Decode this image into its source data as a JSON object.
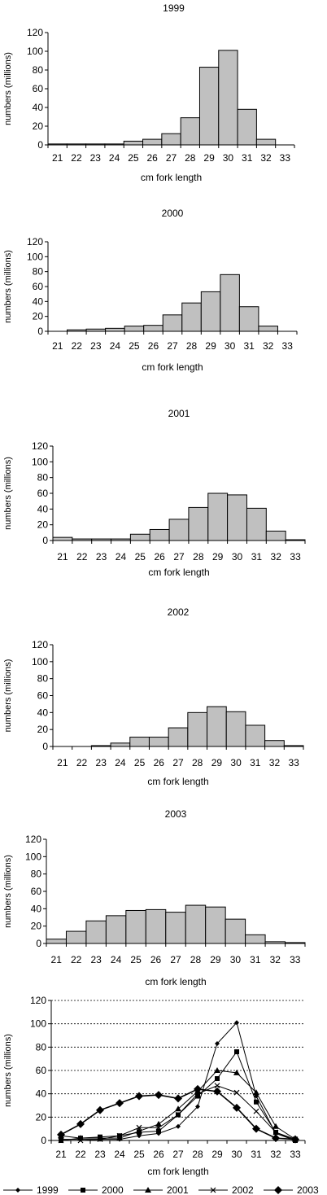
{
  "chart_data": [
    {
      "type": "bar",
      "title": "1999",
      "xlabel": "cm fork length",
      "ylabel": "numbers (millions)",
      "categories": [
        "21",
        "22",
        "23",
        "24",
        "25",
        "26",
        "27",
        "28",
        "29",
        "30",
        "31",
        "32",
        "33"
      ],
      "values": [
        1,
        1,
        1,
        1,
        4,
        6,
        12,
        29,
        83,
        101,
        38,
        6,
        0
      ],
      "ylim": [
        0,
        120
      ],
      "yticks": [
        0,
        20,
        40,
        60,
        80,
        100,
        120
      ],
      "grid": false
    },
    {
      "type": "bar",
      "title": "2000",
      "xlabel": "cm fork length",
      "ylabel": "numbers (millions)",
      "categories": [
        "21",
        "22",
        "23",
        "24",
        "25",
        "26",
        "27",
        "28",
        "29",
        "30",
        "31",
        "32",
        "33"
      ],
      "values": [
        0,
        2,
        3,
        4,
        7,
        8,
        22,
        38,
        53,
        76,
        33,
        7,
        0
      ],
      "ylim": [
        0,
        120
      ],
      "yticks": [
        0,
        20,
        40,
        60,
        80,
        100,
        120
      ],
      "grid": false
    },
    {
      "type": "bar",
      "title": "2001",
      "xlabel": "cm fork length",
      "ylabel": "numbers (millions)",
      "categories": [
        "21",
        "22",
        "23",
        "24",
        "25",
        "26",
        "27",
        "28",
        "29",
        "30",
        "31",
        "32",
        "33"
      ],
      "values": [
        4,
        2,
        2,
        2,
        8,
        14,
        27,
        42,
        60,
        58,
        41,
        12,
        1
      ],
      "ylim": [
        0,
        120
      ],
      "yticks": [
        0,
        20,
        40,
        60,
        80,
        100,
        120
      ],
      "grid": false
    },
    {
      "type": "bar",
      "title": "2002",
      "xlabel": "cm fork length",
      "ylabel": "numbers (millions)",
      "categories": [
        "21",
        "22",
        "23",
        "24",
        "25",
        "26",
        "27",
        "28",
        "29",
        "30",
        "31",
        "32",
        "33"
      ],
      "values": [
        0,
        0,
        1,
        4,
        11,
        11,
        22,
        40,
        47,
        41,
        25,
        7,
        1
      ],
      "ylim": [
        0,
        120
      ],
      "yticks": [
        0,
        20,
        40,
        60,
        80,
        100,
        120
      ],
      "grid": false
    },
    {
      "type": "bar",
      "title": "2003",
      "xlabel": "cm fork length",
      "ylabel": "numbers (millions)",
      "categories": [
        "21",
        "22",
        "23",
        "24",
        "25",
        "26",
        "27",
        "28",
        "29",
        "30",
        "31",
        "32",
        "33"
      ],
      "values": [
        5,
        14,
        26,
        32,
        38,
        39,
        36,
        44,
        42,
        28,
        10,
        2,
        1
      ],
      "ylim": [
        0,
        120
      ],
      "yticks": [
        0,
        20,
        40,
        60,
        80,
        100,
        120
      ],
      "grid": false
    },
    {
      "type": "line",
      "title": "",
      "xlabel": "cm fork length",
      "ylabel": "numbers (millions)",
      "categories": [
        "21",
        "22",
        "23",
        "24",
        "25",
        "26",
        "27",
        "28",
        "29",
        "30",
        "31",
        "32",
        "33"
      ],
      "ylim": [
        0,
        120
      ],
      "yticks": [
        0,
        20,
        40,
        60,
        80,
        100,
        120
      ],
      "grid": true,
      "legend_position": "bottom",
      "series": [
        {
          "name": "1999",
          "marker": "diamond-small",
          "values": [
            1,
            1,
            1,
            1,
            4,
            6,
            12,
            29,
            83,
            101,
            38,
            6,
            0
          ]
        },
        {
          "name": "2000",
          "marker": "square",
          "values": [
            0,
            2,
            3,
            4,
            7,
            8,
            22,
            38,
            53,
            76,
            33,
            7,
            0
          ]
        },
        {
          "name": "2001",
          "marker": "triangle",
          "values": [
            4,
            2,
            2,
            2,
            8,
            14,
            27,
            42,
            60,
            58,
            41,
            12,
            1
          ]
        },
        {
          "name": "2002",
          "marker": "x",
          "values": [
            0,
            0,
            1,
            4,
            11,
            11,
            22,
            40,
            47,
            41,
            25,
            7,
            1
          ]
        },
        {
          "name": "2003",
          "marker": "diamond",
          "values": [
            5,
            14,
            26,
            32,
            38,
            39,
            36,
            44,
            42,
            28,
            10,
            2,
            1
          ]
        }
      ]
    }
  ]
}
